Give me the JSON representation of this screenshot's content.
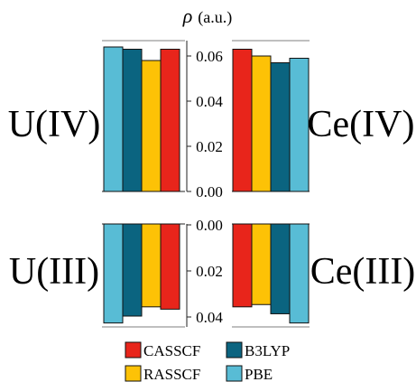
{
  "chart_data": {
    "type": "bar",
    "ylabel": "ρ (a.u.)",
    "ylabel_symbol": "ρ",
    "ylabel_unit": "(a.u.)",
    "series": [
      {
        "name": "CASSCF",
        "color": "#e8251b"
      },
      {
        "name": "RASSCF",
        "color": "#fdc206"
      },
      {
        "name": "B3LYP",
        "color": "#0b6480"
      },
      {
        "name": "PBE",
        "color": "#58bcd5"
      }
    ],
    "panels": [
      {
        "label": "U(IV)",
        "orientation": "up",
        "side": "left",
        "bar_order": [
          "PBE",
          "B3LYP",
          "RASSCF",
          "CASSCF"
        ],
        "values": {
          "CASSCF": 0.063,
          "RASSCF": 0.058,
          "B3LYP": 0.063,
          "PBE": 0.064
        },
        "ylim": [
          0,
          0.06
        ],
        "ticks": [
          "0.00",
          "0.02",
          "0.04",
          "0.06"
        ]
      },
      {
        "label": "Ce(IV)",
        "orientation": "up",
        "side": "right",
        "bar_order": [
          "CASSCF",
          "RASSCF",
          "B3LYP",
          "PBE"
        ],
        "values": {
          "CASSCF": 0.063,
          "RASSCF": 0.06,
          "B3LYP": 0.057,
          "PBE": 0.059
        },
        "ylim": [
          0,
          0.06
        ],
        "ticks": [
          "0.00",
          "0.02",
          "0.04",
          "0.06"
        ]
      },
      {
        "label": "U(III)",
        "orientation": "down",
        "side": "left",
        "bar_order": [
          "PBE",
          "B3LYP",
          "RASSCF",
          "CASSCF"
        ],
        "values": {
          "CASSCF": 0.037,
          "RASSCF": 0.036,
          "B3LYP": 0.04,
          "PBE": 0.043
        },
        "ylim": [
          0,
          0.04
        ],
        "ticks": [
          "0.00",
          "0.02",
          "0.04"
        ]
      },
      {
        "label": "Ce(III)",
        "orientation": "down",
        "side": "right",
        "bar_order": [
          "CASSCF",
          "RASSCF",
          "B3LYP",
          "PBE"
        ],
        "values": {
          "CASSCF": 0.036,
          "RASSCF": 0.035,
          "B3LYP": 0.039,
          "PBE": 0.043
        },
        "ylim": [
          0,
          0.04
        ],
        "ticks": [
          "0.00",
          "0.02",
          "0.04"
        ]
      }
    ],
    "legend": {
      "placement": "bottom",
      "order": [
        "CASSCF",
        "B3LYP",
        "RASSCF",
        "PBE"
      ]
    }
  }
}
